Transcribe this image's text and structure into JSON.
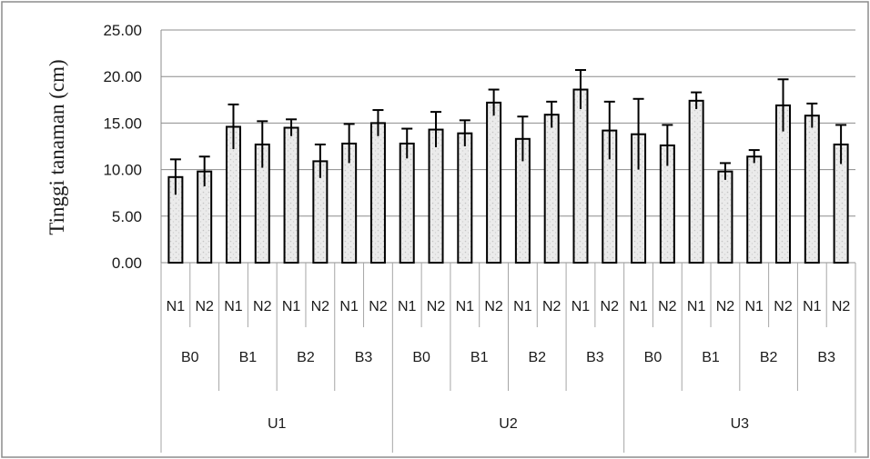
{
  "chart_data": {
    "type": "bar",
    "title": "",
    "xlabel": "",
    "ylabel": "Tinggi tanaman (cm)",
    "ylim": [
      0,
      25
    ],
    "y_ticks": [
      "0.00",
      "5.00",
      "10.00",
      "15.00",
      "20.00",
      "25.00"
    ],
    "grid": true,
    "legend": "none",
    "bar_fill": "#e6e6e6",
    "bar_edge": "#000000",
    "groups": [
      {
        "label": "U1",
        "subgroups": [
          {
            "label": "B0",
            "bars": [
              {
                "label": "N1",
                "value": 9.2,
                "error": 1.9
              },
              {
                "label": "N2",
                "value": 9.8,
                "error": 1.6
              }
            ]
          },
          {
            "label": "B1",
            "bars": [
              {
                "label": "N1",
                "value": 14.6,
                "error": 2.4
              },
              {
                "label": "N2",
                "value": 12.7,
                "error": 2.5
              }
            ]
          },
          {
            "label": "B2",
            "bars": [
              {
                "label": "N1",
                "value": 14.5,
                "error": 0.9
              },
              {
                "label": "N2",
                "value": 10.9,
                "error": 1.8
              }
            ]
          },
          {
            "label": "B3",
            "bars": [
              {
                "label": "N1",
                "value": 12.8,
                "error": 2.1
              },
              {
                "label": "N2",
                "value": 15.0,
                "error": 1.4
              }
            ]
          }
        ]
      },
      {
        "label": "U2",
        "subgroups": [
          {
            "label": "B0",
            "bars": [
              {
                "label": "N1",
                "value": 12.8,
                "error": 1.6
              },
              {
                "label": "N2",
                "value": 14.3,
                "error": 1.9
              }
            ]
          },
          {
            "label": "B1",
            "bars": [
              {
                "label": "N1",
                "value": 13.9,
                "error": 1.4
              },
              {
                "label": "N2",
                "value": 17.2,
                "error": 1.4
              }
            ]
          },
          {
            "label": "B2",
            "bars": [
              {
                "label": "N1",
                "value": 13.3,
                "error": 2.4
              },
              {
                "label": "N2",
                "value": 15.9,
                "error": 1.4
              }
            ]
          },
          {
            "label": "B3",
            "bars": [
              {
                "label": "N1",
                "value": 18.6,
                "error": 2.1
              },
              {
                "label": "N2",
                "value": 14.2,
                "error": 3.1
              }
            ]
          }
        ]
      },
      {
        "label": "U3",
        "subgroups": [
          {
            "label": "B0",
            "bars": [
              {
                "label": "N1",
                "value": 13.8,
                "error": 3.8
              },
              {
                "label": "N2",
                "value": 12.6,
                "error": 2.2
              }
            ]
          },
          {
            "label": "B1",
            "bars": [
              {
                "label": "N1",
                "value": 17.4,
                "error": 0.9
              },
              {
                "label": "N2",
                "value": 9.8,
                "error": 0.9
              }
            ]
          },
          {
            "label": "B2",
            "bars": [
              {
                "label": "N1",
                "value": 11.4,
                "error": 0.7
              },
              {
                "label": "N2",
                "value": 16.9,
                "error": 2.8
              }
            ]
          },
          {
            "label": "B3",
            "bars": [
              {
                "label": "N1",
                "value": 15.8,
                "error": 1.3
              },
              {
                "label": "N2",
                "value": 12.7,
                "error": 2.1
              }
            ]
          }
        ]
      }
    ]
  }
}
